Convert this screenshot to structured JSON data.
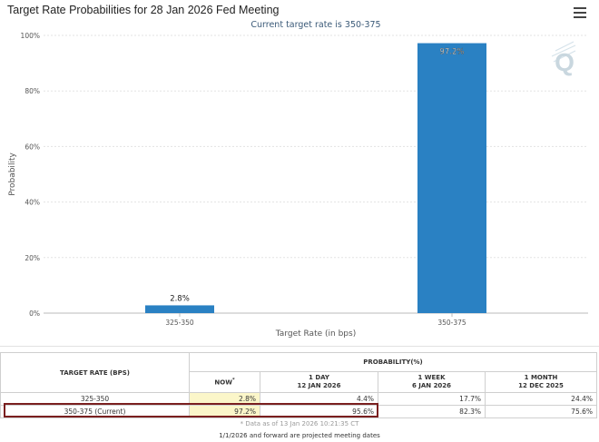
{
  "chart_data": {
    "type": "bar",
    "title": "Target Rate Probabilities for 28 Jan 2026 Fed Meeting",
    "subtitle": "Current target rate is 350-375",
    "categories": [
      "325-350",
      "350-375"
    ],
    "values": [
      2.8,
      97.2
    ],
    "data_labels": [
      "2.8%",
      "97.2%"
    ],
    "xlabel": "Target Rate (in bps)",
    "ylabel": "Probability",
    "ylim": [
      0,
      100
    ],
    "y_ticks": [
      0,
      20,
      40,
      60,
      80,
      100
    ],
    "y_tick_labels": [
      "0%",
      "20%",
      "40%",
      "60%",
      "80%",
      "100%"
    ],
    "bar_color": "#2a81c3",
    "grid": true
  },
  "table": {
    "col_target_rate": "TARGET RATE (BPS)",
    "col_probability": "PROBABILITY(%)",
    "col_now": "NOW",
    "col_now_mark": "*",
    "col_1day": "1 DAY",
    "col_1day_date": "12 JAN 2026",
    "col_1week": "1 WEEK",
    "col_1week_date": "6 JAN 2026",
    "col_1month": "1 MONTH",
    "col_1month_date": "12 DEC 2025",
    "rows": [
      {
        "rate": "325-350",
        "now": "2.8%",
        "day": "4.4%",
        "week": "17.7%",
        "month": "24.4%"
      },
      {
        "rate": "350-375 (Current)",
        "now": "97.2%",
        "day": "95.6%",
        "week": "82.3%",
        "month": "75.6%"
      }
    ],
    "footnote": "* Data as of 13 Jan 2026 10:21:35 CT"
  },
  "bottom_note": "1/1/2026 and forward are projected meeting dates",
  "icons": {
    "menu": "hamburger-menu-icon",
    "watermark": "q-logo-icon"
  }
}
